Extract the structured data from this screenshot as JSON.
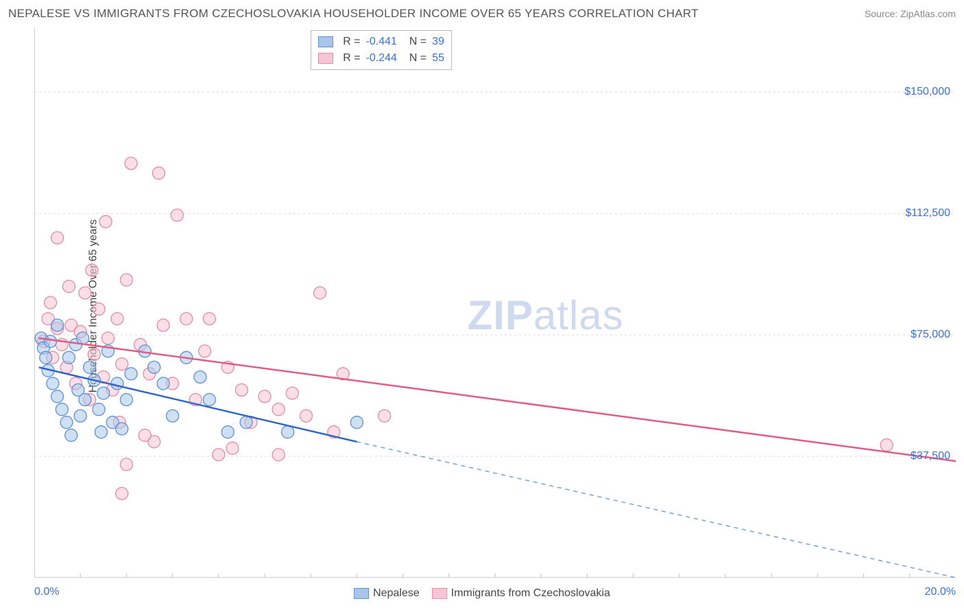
{
  "chart": {
    "type": "scatter",
    "title": "NEPALESE VS IMMIGRANTS FROM CZECHOSLOVAKIA HOUSEHOLDER INCOME OVER 65 YEARS CORRELATION CHART",
    "source_label": "Source: ZipAtlas.com",
    "ylabel": "Householder Income Over 65 years",
    "xlim": [
      0,
      20
    ],
    "ylim": [
      0,
      170000
    ],
    "x_tick_labels": [
      "0.0%",
      "20.0%"
    ],
    "x_minor_ticks": [
      1,
      2,
      3,
      4,
      5,
      6,
      7,
      8,
      9,
      10,
      11,
      12,
      13,
      14,
      15,
      16,
      17,
      18,
      19
    ],
    "y_grid_values": [
      37500,
      75000,
      112500,
      150000
    ],
    "y_grid_labels": [
      "$37,500",
      "$75,000",
      "$112,500",
      "$150,000"
    ],
    "grid_color": "#d9d9d9",
    "axis_color": "#bfbfbf",
    "background_color": "#ffffff",
    "value_color": "#3b6fd6",
    "watermark": {
      "text_bold": "ZIP",
      "text_light": "atlas"
    },
    "series": [
      {
        "name": "Nepalese",
        "marker_stroke": "#5b8fd6",
        "marker_fill": "#a9c6ea",
        "marker_fill_opacity": 0.55,
        "marker_radius": 9,
        "line_color": "#2f66c9",
        "line_width": 2.5,
        "dash_color": "#6fa0d8",
        "R": "-0.441",
        "N": "39",
        "points": [
          [
            0.15,
            74000
          ],
          [
            0.2,
            71000
          ],
          [
            0.25,
            68000
          ],
          [
            0.3,
            64000
          ],
          [
            0.35,
            73000
          ],
          [
            0.4,
            60000
          ],
          [
            0.5,
            78000
          ],
          [
            0.5,
            56000
          ],
          [
            0.6,
            52000
          ],
          [
            0.7,
            48000
          ],
          [
            0.75,
            68000
          ],
          [
            0.8,
            44000
          ],
          [
            0.9,
            72000
          ],
          [
            0.95,
            58000
          ],
          [
            1.0,
            50000
          ],
          [
            1.05,
            74000
          ],
          [
            1.1,
            55000
          ],
          [
            1.2,
            65000
          ],
          [
            1.3,
            61000
          ],
          [
            1.4,
            52000
          ],
          [
            1.45,
            45000
          ],
          [
            1.5,
            57000
          ],
          [
            1.6,
            70000
          ],
          [
            1.7,
            48000
          ],
          [
            1.8,
            60000
          ],
          [
            1.9,
            46000
          ],
          [
            2.0,
            55000
          ],
          [
            2.1,
            63000
          ],
          [
            2.4,
            70000
          ],
          [
            2.6,
            65000
          ],
          [
            2.8,
            60000
          ],
          [
            3.0,
            50000
          ],
          [
            3.3,
            68000
          ],
          [
            3.6,
            62000
          ],
          [
            3.8,
            55000
          ],
          [
            4.2,
            45000
          ],
          [
            4.6,
            48000
          ],
          [
            5.5,
            45000
          ],
          [
            7.0,
            48000
          ]
        ],
        "regression": {
          "x1": 0.1,
          "y1": 65000,
          "x2": 7.0,
          "y2": 42000,
          "extend_x2": 20,
          "extend_y2": 0
        }
      },
      {
        "name": "Immigrants from Czechoslovakia",
        "marker_stroke": "#e48aa5",
        "marker_fill": "#f7c5d3",
        "marker_fill_opacity": 0.55,
        "marker_radius": 9,
        "line_color": "#e15b84",
        "line_width": 2.5,
        "R": "-0.244",
        "N": "55",
        "points": [
          [
            0.2,
            73000
          ],
          [
            0.3,
            80000
          ],
          [
            0.35,
            85000
          ],
          [
            0.4,
            68000
          ],
          [
            0.5,
            105000
          ],
          [
            0.5,
            77000
          ],
          [
            0.6,
            72000
          ],
          [
            0.7,
            65000
          ],
          [
            0.75,
            90000
          ],
          [
            0.8,
            78000
          ],
          [
            0.9,
            60000
          ],
          [
            1.0,
            76000
          ],
          [
            1.1,
            88000
          ],
          [
            1.2,
            55000
          ],
          [
            1.25,
            95000
          ],
          [
            1.3,
            69000
          ],
          [
            1.4,
            83000
          ],
          [
            1.5,
            62000
          ],
          [
            1.55,
            110000
          ],
          [
            1.6,
            74000
          ],
          [
            1.7,
            58000
          ],
          [
            1.8,
            80000
          ],
          [
            1.85,
            48000
          ],
          [
            1.9,
            66000
          ],
          [
            2.0,
            92000
          ],
          [
            2.0,
            35000
          ],
          [
            2.1,
            128000
          ],
          [
            2.3,
            72000
          ],
          [
            2.5,
            63000
          ],
          [
            2.6,
            42000
          ],
          [
            2.7,
            125000
          ],
          [
            2.8,
            78000
          ],
          [
            3.0,
            60000
          ],
          [
            3.1,
            112000
          ],
          [
            3.3,
            80000
          ],
          [
            3.5,
            55000
          ],
          [
            3.7,
            70000
          ],
          [
            3.8,
            80000
          ],
          [
            4.0,
            38000
          ],
          [
            4.2,
            65000
          ],
          [
            4.3,
            40000
          ],
          [
            4.5,
            58000
          ],
          [
            4.7,
            48000
          ],
          [
            5.0,
            56000
          ],
          [
            5.3,
            38000
          ],
          [
            5.3,
            52000
          ],
          [
            5.6,
            57000
          ],
          [
            5.9,
            50000
          ],
          [
            6.2,
            88000
          ],
          [
            6.5,
            45000
          ],
          [
            6.7,
            63000
          ],
          [
            7.6,
            50000
          ],
          [
            1.9,
            26000
          ],
          [
            2.4,
            44000
          ],
          [
            18.5,
            41000
          ]
        ],
        "regression": {
          "x1": 0.1,
          "y1": 74000,
          "x2": 20,
          "y2": 36000
        }
      }
    ],
    "bottom_legend": [
      {
        "label": "Nepalese",
        "fill": "#a9c6ea",
        "stroke": "#5b8fd6"
      },
      {
        "label": "Immigrants from Czechoslovakia",
        "fill": "#f7c5d3",
        "stroke": "#e48aa5"
      }
    ]
  }
}
